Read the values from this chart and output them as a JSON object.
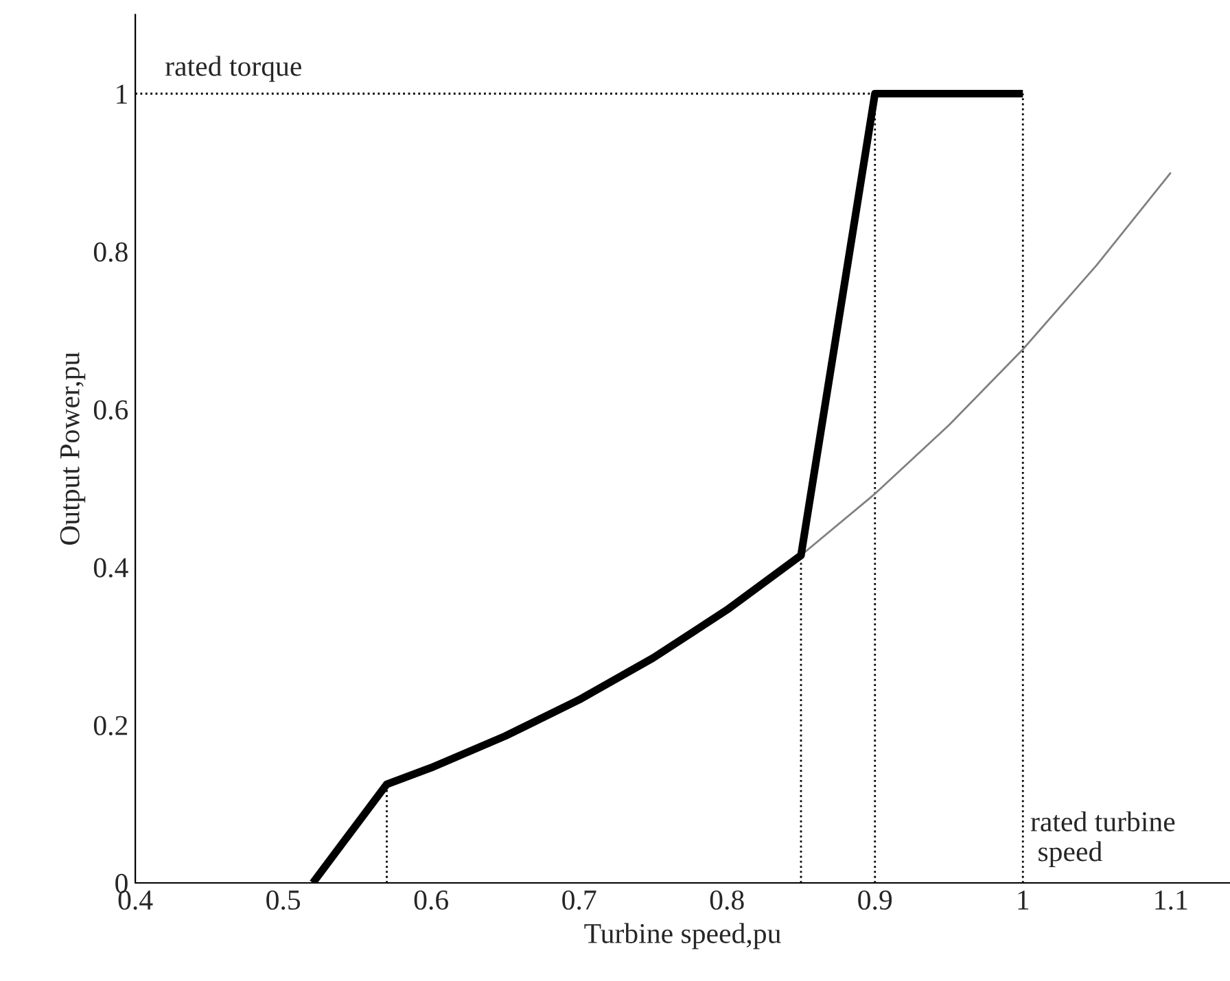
{
  "chart_data": {
    "type": "line",
    "xlabel": "Turbine speed,pu",
    "ylabel": "Output Power,pu",
    "xlim": [
      0.4,
      1.14
    ],
    "ylim": [
      0,
      1.1
    ],
    "xticks": [
      0.4,
      0.5,
      0.6,
      0.7,
      0.8,
      0.9,
      1,
      1.1
    ],
    "yticks": [
      0,
      0.2,
      0.4,
      0.6,
      0.8,
      1
    ],
    "grid": false,
    "legend": false,
    "line_style": "solid",
    "marker": "none",
    "series": [
      {
        "color": "#000000",
        "x": [
          0.52,
          0.57,
          0.6,
          0.65,
          0.7,
          0.75,
          0.8,
          0.85,
          0.9,
          1.0
        ],
        "values": [
          0,
          0.125,
          0.146,
          0.186,
          0.232,
          0.285,
          0.346,
          0.415,
          1,
          1
        ]
      },
      {
        "color": "#808080",
        "x": [
          0.85,
          0.9,
          0.95,
          1.0,
          1.05,
          1.1
        ],
        "values": [
          0.415,
          0.493,
          0.58,
          0.676,
          0.783,
          0.9
        ]
      }
    ],
    "ref_lines": [
      {
        "axis": "y",
        "value": 1,
        "label": "rated torque",
        "line_style": "dotted",
        "color": "#000000"
      },
      {
        "axis": "x",
        "value": 0.57,
        "line_style": "dotted",
        "color": "#000000"
      },
      {
        "axis": "x",
        "value": 0.85,
        "line_style": "dotted",
        "color": "#000000"
      },
      {
        "axis": "x",
        "value": 0.9,
        "line_style": "dotted",
        "color": "#000000"
      },
      {
        "axis": "x",
        "value": 1,
        "label": "rated turbine\n speed",
        "line_style": "dotted",
        "color": "#000000"
      }
    ]
  }
}
